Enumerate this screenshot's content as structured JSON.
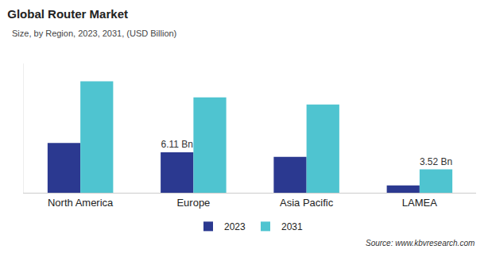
{
  "chart_data": {
    "type": "bar",
    "title": "Global Router Market",
    "subtitle": "Size, by Region, 2023, 2031, (USD Billion)",
    "annotations": [
      "Source: www.kbvresearch.com"
    ],
    "categories": [
      "North America",
      "Europe",
      "Asia Pacific",
      "LAMEA"
    ],
    "series": [
      {
        "name": "2023",
        "color": "#2b3990",
        "values": [
          7.5,
          6.11,
          5.4,
          1.1
        ],
        "value_labels": [
          null,
          "6.11 Bn",
          null,
          null
        ]
      },
      {
        "name": "2031",
        "color": "#4fc4d0",
        "values": [
          16.8,
          14.4,
          13.3,
          3.52
        ],
        "value_labels": [
          null,
          null,
          null,
          "3.52 Bn"
        ]
      }
    ],
    "ylim": [
      0,
      19.5
    ],
    "grid": false,
    "legend": "bottom",
    "data_labels": true,
    "tick_labels": "x"
  }
}
